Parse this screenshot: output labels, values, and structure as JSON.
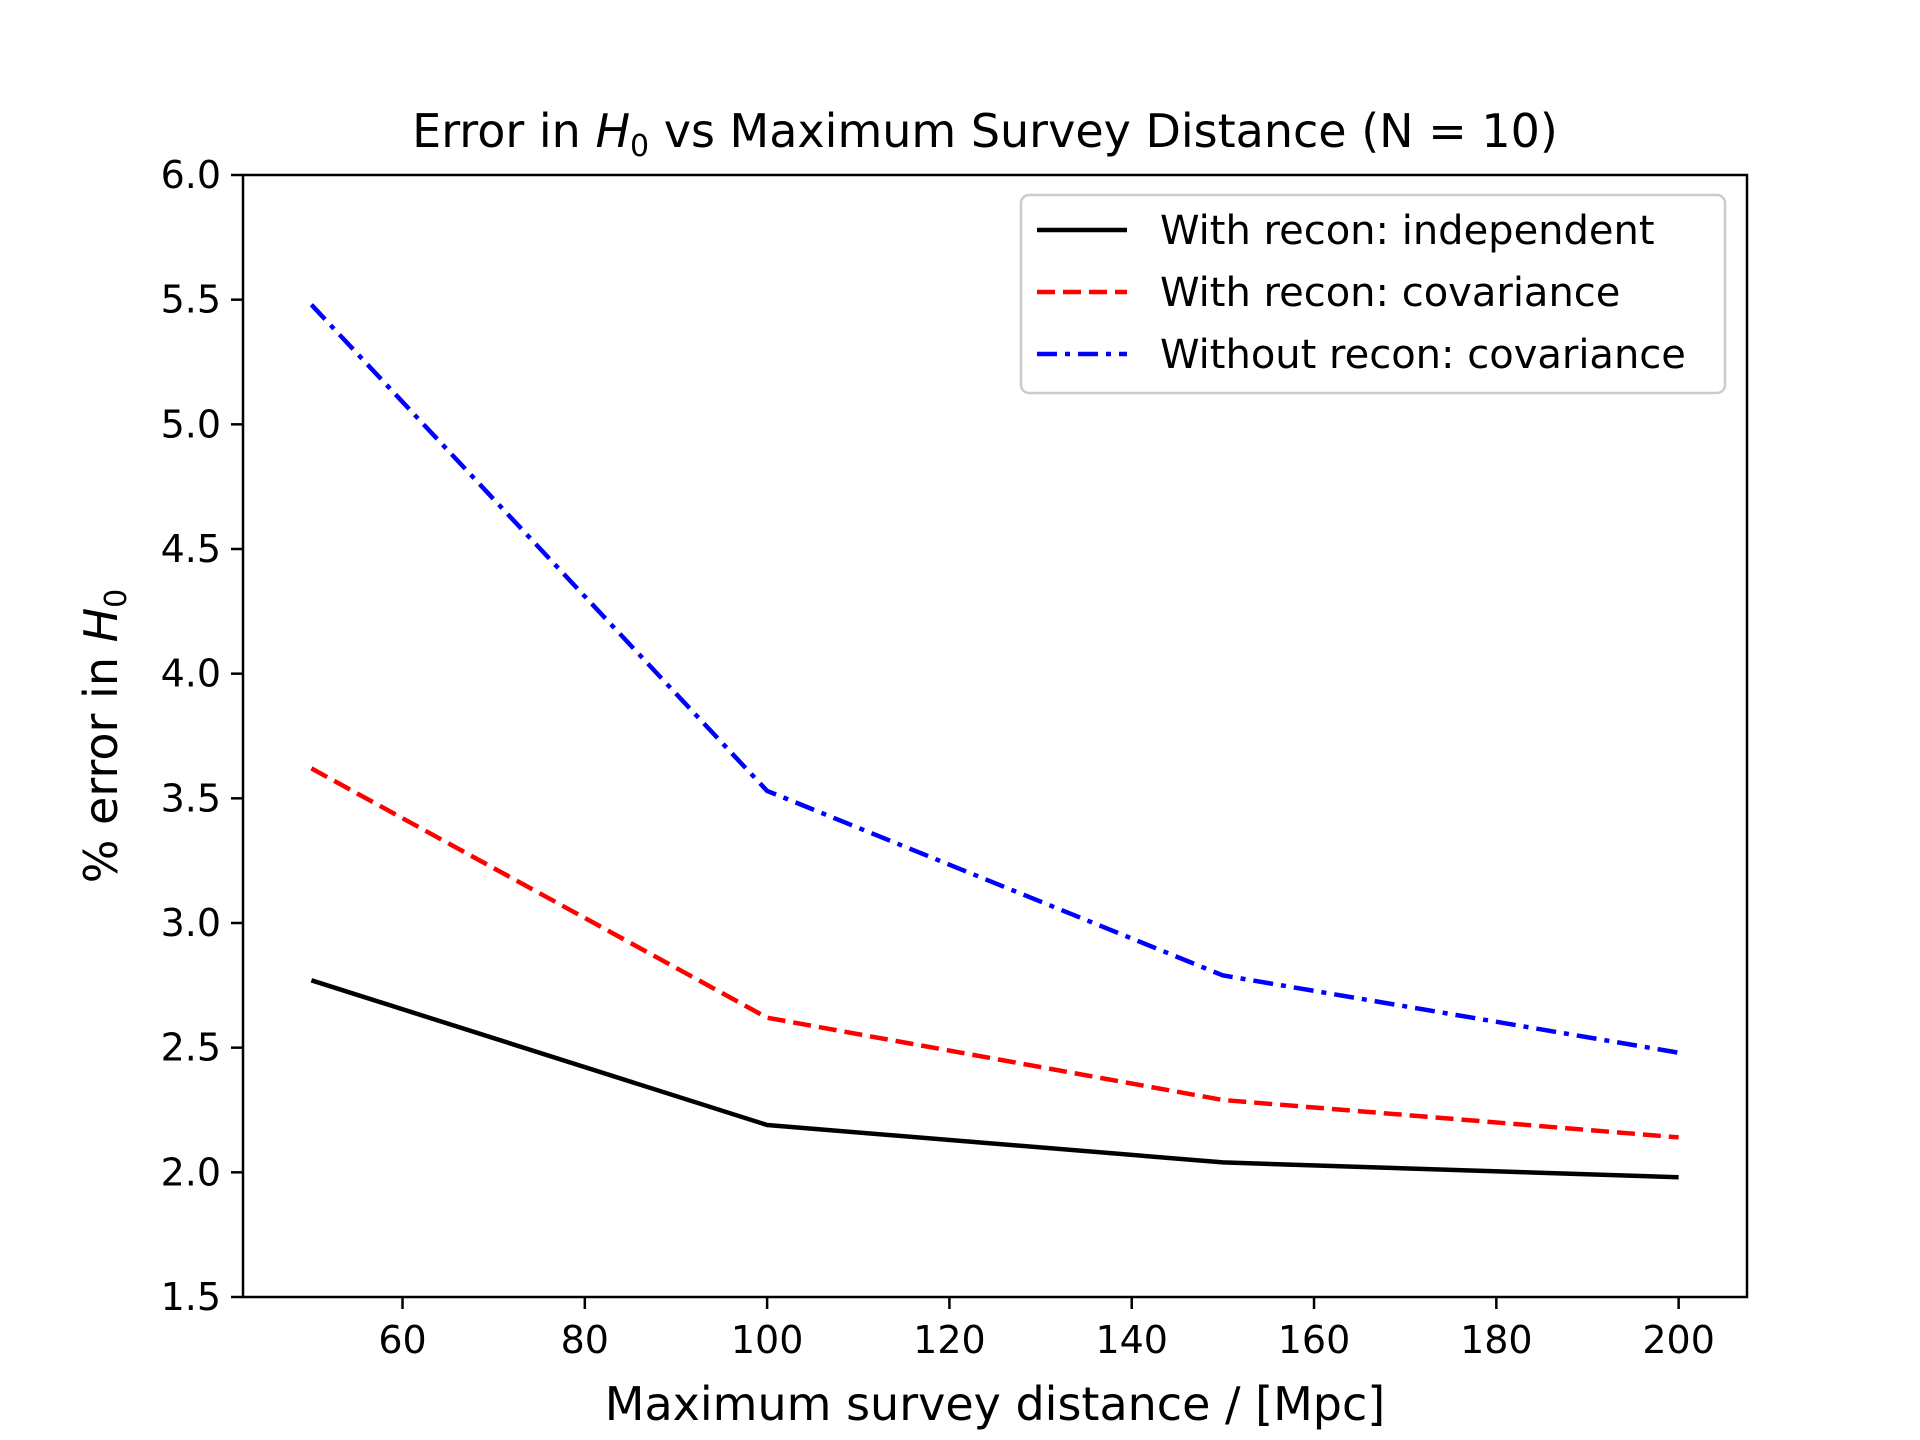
{
  "chart_data": {
    "type": "line",
    "title_prefix": "Error in ",
    "title_var": "H",
    "title_sub": "0",
    "title_suffix": " vs Maximum Survey Distance (N = 10)",
    "xlabel": "Maximum survey distance / [Mpc]",
    "ylabel_prefix": "% error in ",
    "ylabel_var": "H",
    "ylabel_sub": "0",
    "xlim": [
      42.5,
      207.5
    ],
    "ylim": [
      1.5,
      6.0
    ],
    "xticks": [
      60,
      80,
      100,
      120,
      140,
      160,
      180,
      200
    ],
    "xtick_labels": [
      "60",
      "80",
      "100",
      "120",
      "140",
      "160",
      "180",
      "200"
    ],
    "yticks": [
      1.5,
      2.0,
      2.5,
      3.0,
      3.5,
      4.0,
      4.5,
      5.0,
      5.5,
      6.0
    ],
    "ytick_labels": [
      "1.5",
      "2.0",
      "2.5",
      "3.0",
      "3.5",
      "4.0",
      "4.5",
      "5.0",
      "5.5",
      "6.0"
    ],
    "x": [
      50,
      100,
      150,
      200
    ],
    "legend_position": "top-right",
    "series": [
      {
        "name": "With recon: independent",
        "values": [
          2.77,
          2.19,
          2.04,
          1.98
        ],
        "color": "#000000",
        "style": "solid"
      },
      {
        "name": "With recon: covariance",
        "values": [
          3.62,
          2.62,
          2.29,
          2.14
        ],
        "color": "#ff0000",
        "style": "dashed"
      },
      {
        "name": "Without recon: covariance",
        "values": [
          5.48,
          3.53,
          2.79,
          2.48
        ],
        "color": "#0000ff",
        "style": "dashdot"
      }
    ]
  }
}
